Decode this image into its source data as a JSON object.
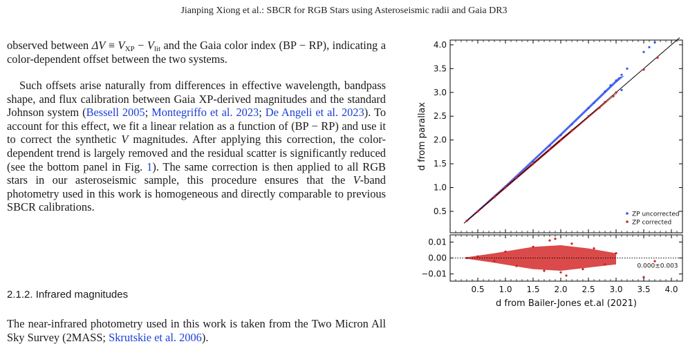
{
  "header": {
    "running_title": "Jianping Xiong et al.: SBCR for RGB Stars using Asteroseismic radii and Gaia DR3"
  },
  "para1": {
    "t1": "observed between ",
    "dv": "ΔV",
    "t2": " ≡ ",
    "vxp": "V",
    "xp": "XP",
    "t3": " − ",
    "vlit": "V",
    "lit": "lit",
    "t4": " and the Gaia color index (BP − RP), indicating a color-dependent offset between the two systems."
  },
  "para2": {
    "t1": "Such offsets arise naturally from differences in effective wavelength, bandpass shape, and flux calibration between Gaia XP-derived magnitudes and the standard Johnson system (",
    "ref1": "Bessell 2005",
    "sep1": "; ",
    "ref2": "Montegriffo et al. 2023",
    "sep2": "; ",
    "ref3": "De Angeli et al. 2023",
    "t2": "). To account for this effect, we fit a linear relation as a function of (BP − RP) and use it to correct the synthetic ",
    "v1": "V",
    "t3": " magnitudes. After applying this correction, the color-dependent trend is largely removed and the residual scatter is significantly reduced (see the bottom panel in Fig. ",
    "figref": "1",
    "t4": "). The same correction is then applied to all RGB stars in our asteroseismic sample, this procedure ensures that the ",
    "v2": "V",
    "t5": "-band photometry used in this work is homogeneous and directly comparable to previous SBCR calibrations."
  },
  "section": {
    "heading": "2.1.2. Infrared magnitudes"
  },
  "para3": {
    "t1": "The near-infrared photometry used in this work is taken from the Two Micron All Sky Survey (2MASS; ",
    "ref": "Skrutskie et al. 2006",
    "t2": ")."
  },
  "chart_data": [
    {
      "type": "scatter",
      "panel": "top",
      "ylabel": "d from parallax",
      "xlim": [
        0.0,
        4.2
      ],
      "ylim": [
        0.05,
        4.1
      ],
      "yticks": [
        "0.5",
        "1.0",
        "1.5",
        "2.0",
        "2.5",
        "3.0",
        "3.5",
        "4.0"
      ],
      "reference_line": "one-to-one",
      "legend_position": "bottom-right",
      "series": [
        {
          "name": "ZP uncorrected",
          "color": "#3355ee",
          "points": [
            [
              0.3,
              0.3
            ],
            [
              0.5,
              0.5
            ],
            [
              0.8,
              0.81
            ],
            [
              1.0,
              1.02
            ],
            [
              1.2,
              1.23
            ],
            [
              1.5,
              1.55
            ],
            [
              1.8,
              1.88
            ],
            [
              2.0,
              2.1
            ],
            [
              2.2,
              2.33
            ],
            [
              2.5,
              2.67
            ],
            [
              2.8,
              3.02
            ],
            [
              3.0,
              3.25
            ],
            [
              3.1,
              3.37
            ],
            [
              3.2,
              3.5
            ],
            [
              3.5,
              3.85
            ],
            [
              3.6,
              3.95
            ],
            [
              3.7,
              4.05
            ],
            [
              3.1,
              3.05
            ],
            [
              2.9,
              3.15
            ],
            [
              2.6,
              2.78
            ]
          ]
        },
        {
          "name": "ZP corrected",
          "color": "#cc2222",
          "points": [
            [
              0.3,
              0.3
            ],
            [
              0.5,
              0.5
            ],
            [
              0.8,
              0.8
            ],
            [
              1.0,
              1.0
            ],
            [
              1.2,
              1.2
            ],
            [
              1.5,
              1.5
            ],
            [
              1.8,
              1.8
            ],
            [
              2.0,
              2.0
            ],
            [
              2.2,
              2.2
            ],
            [
              2.5,
              2.5
            ],
            [
              2.8,
              2.8
            ],
            [
              3.0,
              3.0
            ],
            [
              3.5,
              3.48
            ],
            [
              3.75,
              3.73
            ],
            [
              2.95,
              2.92
            ],
            [
              2.7,
              2.68
            ]
          ]
        }
      ]
    },
    {
      "type": "scatter",
      "panel": "bottom",
      "xlabel": "d from Bailer-Jones et.al (2021)",
      "xlim": [
        0.0,
        4.2
      ],
      "ylim": [
        -0.0145,
        0.0145
      ],
      "xticks": [
        "0.5",
        "1.0",
        "1.5",
        "2.0",
        "2.5",
        "3.0",
        "3.5",
        "4.0"
      ],
      "yticks": [
        "−0.01",
        "0.00",
        "0.01"
      ],
      "annotation": "0.000±0.003",
      "series": [
        {
          "color": "#cc2222",
          "points": [
            [
              0.3,
              0.0
            ],
            [
              0.5,
              0.001
            ],
            [
              0.8,
              -0.002
            ],
            [
              1.0,
              0.004
            ],
            [
              1.2,
              -0.005
            ],
            [
              1.5,
              0.007
            ],
            [
              1.7,
              -0.008
            ],
            [
              1.8,
              0.011
            ],
            [
              2.0,
              -0.009
            ],
            [
              2.2,
              0.009
            ],
            [
              2.4,
              -0.007
            ],
            [
              2.6,
              0.006
            ],
            [
              2.8,
              -0.004
            ],
            [
              3.0,
              0.003
            ],
            [
              3.5,
              -0.012
            ],
            [
              3.7,
              -0.002
            ],
            [
              1.9,
              0.012
            ],
            [
              2.1,
              -0.011
            ]
          ]
        }
      ]
    }
  ]
}
